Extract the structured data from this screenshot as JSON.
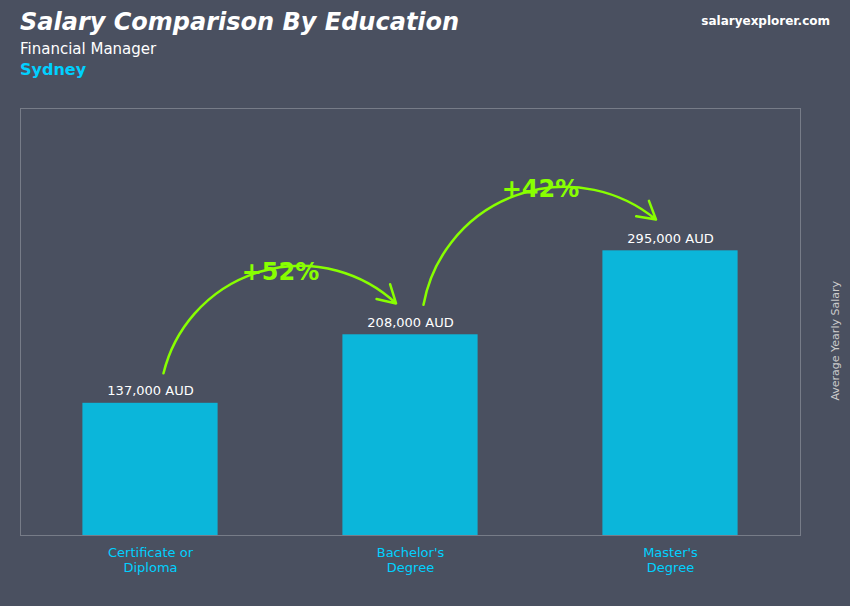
{
  "chart_data": {
    "type": "bar",
    "title": "Salary Comparison By Education",
    "subtitle": "Financial Manager",
    "location": "Sydney",
    "source": "salaryexplorer.com",
    "ylabel": "Average Yearly Salary",
    "categories": [
      "Certificate or\nDiploma",
      "Bachelor's\nDegree",
      "Master's\nDegree"
    ],
    "values": [
      137000,
      208000,
      295000
    ],
    "value_labels": [
      "137,000 AUD",
      "208,000 AUD",
      "295,000 AUD"
    ],
    "data_labels": true,
    "color": "#00c8f0",
    "ylim": [
      0,
      442500
    ],
    "tick_labels": "x",
    "grid": false,
    "annotations": [
      {
        "text": "+52%",
        "from": "Certificate or\nDiploma",
        "to": "Bachelor's\nDegree"
      },
      {
        "text": "+42%",
        "from": "Bachelor's\nDegree",
        "to": "Master's\nDegree"
      }
    ]
  }
}
